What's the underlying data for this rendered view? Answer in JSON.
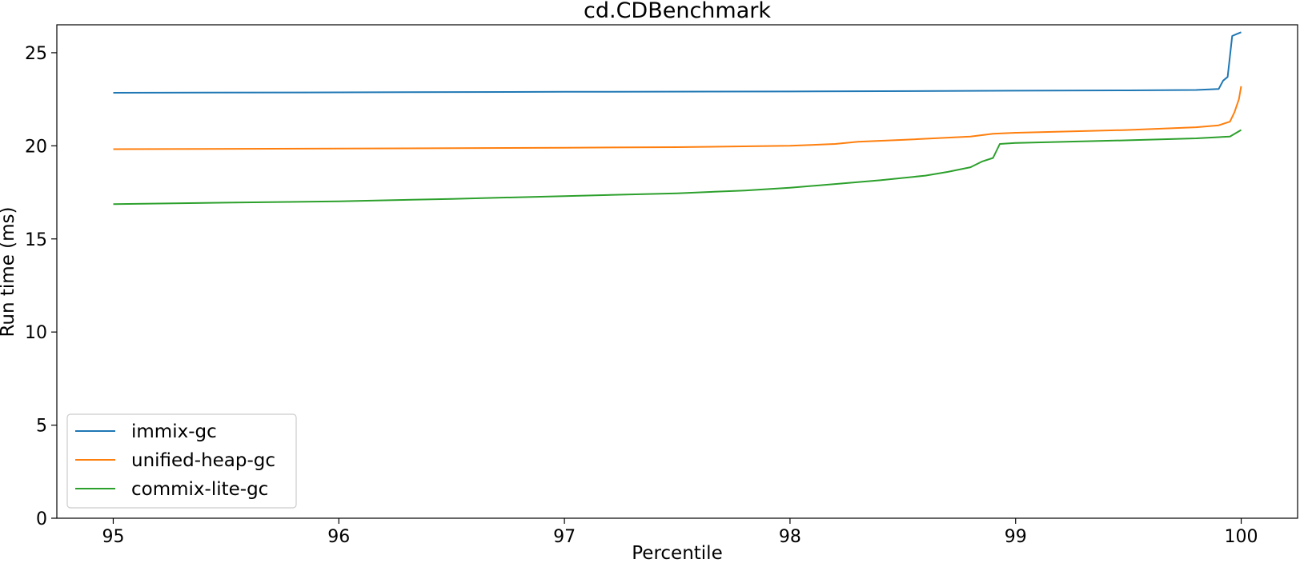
{
  "chart_data": {
    "type": "line",
    "title": "cd.CDBenchmark",
    "xlabel": "Percentile",
    "ylabel": "Run time (ms)",
    "xlim": [
      94.75,
      100.25
    ],
    "ylim": [
      0,
      26.5
    ],
    "xticks": [
      95,
      96,
      97,
      98,
      99,
      100
    ],
    "yticks": [
      0,
      5,
      10,
      15,
      20,
      25
    ],
    "grid": false,
    "legend_position": "lower-left",
    "series": [
      {
        "name": "immix-gc",
        "color": "#1f77b4",
        "points": [
          [
            95.0,
            22.85
          ],
          [
            96.0,
            22.87
          ],
          [
            97.0,
            22.9
          ],
          [
            98.0,
            22.92
          ],
          [
            99.0,
            22.96
          ],
          [
            99.5,
            22.98
          ],
          [
            99.8,
            23.0
          ],
          [
            99.9,
            23.05
          ],
          [
            99.92,
            23.5
          ],
          [
            99.94,
            23.7
          ],
          [
            99.96,
            25.9
          ],
          [
            99.98,
            26.0
          ],
          [
            100.0,
            26.1
          ]
        ]
      },
      {
        "name": "unified-heap-gc",
        "color": "#ff7f0e",
        "points": [
          [
            95.0,
            19.82
          ],
          [
            96.0,
            19.85
          ],
          [
            97.0,
            19.9
          ],
          [
            97.5,
            19.93
          ],
          [
            98.0,
            20.0
          ],
          [
            98.2,
            20.1
          ],
          [
            98.3,
            20.22
          ],
          [
            98.5,
            20.32
          ],
          [
            98.8,
            20.5
          ],
          [
            98.9,
            20.65
          ],
          [
            99.0,
            20.7
          ],
          [
            99.5,
            20.85
          ],
          [
            99.8,
            21.0
          ],
          [
            99.9,
            21.1
          ],
          [
            99.95,
            21.3
          ],
          [
            99.97,
            21.8
          ],
          [
            99.99,
            22.5
          ],
          [
            100.0,
            23.2
          ]
        ]
      },
      {
        "name": "commix-lite-gc",
        "color": "#2ca02c",
        "points": [
          [
            95.0,
            16.87
          ],
          [
            95.5,
            16.95
          ],
          [
            96.0,
            17.02
          ],
          [
            96.5,
            17.15
          ],
          [
            97.0,
            17.3
          ],
          [
            97.5,
            17.45
          ],
          [
            97.8,
            17.6
          ],
          [
            98.0,
            17.75
          ],
          [
            98.2,
            17.95
          ],
          [
            98.4,
            18.15
          ],
          [
            98.6,
            18.4
          ],
          [
            98.7,
            18.6
          ],
          [
            98.8,
            18.85
          ],
          [
            98.85,
            19.15
          ],
          [
            98.9,
            19.35
          ],
          [
            98.93,
            20.1
          ],
          [
            99.0,
            20.15
          ],
          [
            99.5,
            20.3
          ],
          [
            99.8,
            20.4
          ],
          [
            99.95,
            20.5
          ],
          [
            100.0,
            20.85
          ]
        ]
      }
    ]
  }
}
